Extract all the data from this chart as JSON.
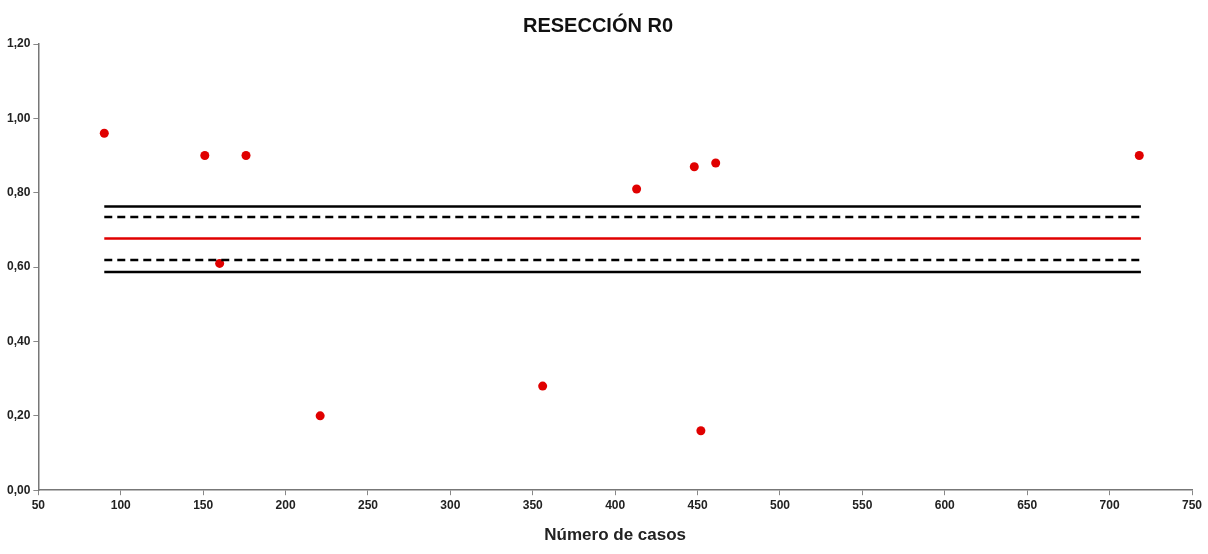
{
  "chart_data": {
    "type": "scatter",
    "title": "RESECCIÓN R0",
    "xlabel": "Número de casos",
    "xlim": [
      50,
      750
    ],
    "xticks": [
      50,
      100,
      150,
      200,
      250,
      300,
      350,
      400,
      450,
      500,
      550,
      600,
      650,
      700,
      750
    ],
    "ylim": [
      0,
      1.2
    ],
    "yticks": [
      {
        "value": 0,
        "label": "0,00"
      },
      {
        "value": 0.2,
        "label": "0,20"
      },
      {
        "value": 0.4,
        "label": "0,40"
      },
      {
        "value": 0.6,
        "label": "0,60"
      },
      {
        "value": 0.8,
        "label": "0,80"
      },
      {
        "value": 1.0,
        "label": "1,00"
      },
      {
        "value": 1.2,
        "label": "1,20"
      }
    ],
    "grid": false,
    "legend": false,
    "marker": "circle",
    "series": [
      {
        "type": "line",
        "color": "#000000",
        "line_style": "solid",
        "marker": "none",
        "x": [
          90,
          719
        ],
        "values": [
          0.763,
          0.763
        ]
      },
      {
        "type": "line",
        "color": "#000000",
        "line_style": "dashed",
        "marker": "none",
        "x": [
          90,
          719
        ],
        "values": [
          0.735,
          0.735
        ]
      },
      {
        "type": "line",
        "color": "#e00000",
        "line_style": "solid",
        "marker": "none",
        "x": [
          90,
          719
        ],
        "values": [
          0.677,
          0.677
        ]
      },
      {
        "type": "line",
        "color": "#000000",
        "line_style": "dashed",
        "marker": "none",
        "x": [
          90,
          719
        ],
        "values": [
          0.619,
          0.619
        ]
      },
      {
        "type": "line",
        "color": "#000000",
        "line_style": "solid",
        "marker": "none",
        "x": [
          90,
          719
        ],
        "values": [
          0.587,
          0.587
        ]
      },
      {
        "type": "scatter",
        "color": "#e00000",
        "x": [
          90,
          151,
          176,
          160,
          221,
          356,
          413,
          448,
          461,
          452,
          718
        ],
        "values": [
          0.96,
          0.9,
          0.9,
          0.61,
          0.2,
          0.28,
          0.81,
          0.87,
          0.88,
          0.16,
          0.9
        ]
      }
    ]
  }
}
